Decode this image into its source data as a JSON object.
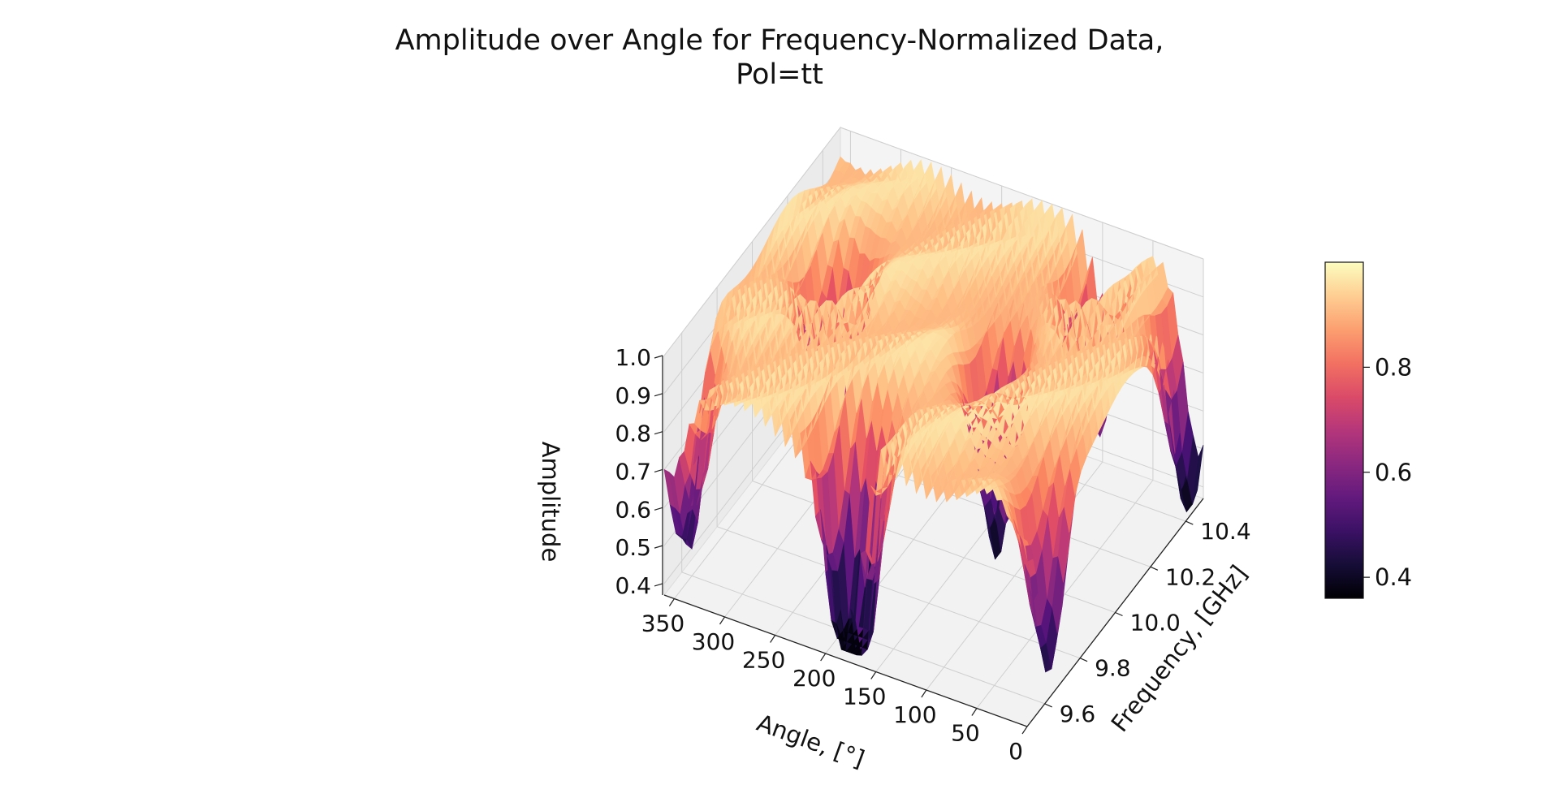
{
  "figure": {
    "title_line1": "Amplitude over Angle for Frequency-Normalized Data,",
    "title_line2": "Pol=tt"
  },
  "chart_data": {
    "type": "surface",
    "colormap": "magma",
    "title": "Amplitude over Angle for Frequency-Normalized Data, Pol=tt",
    "xlabel": "Angle, [°]",
    "ylabel": "Frequency, [GHz]",
    "zlabel": "Amplitude",
    "xlim": [
      0,
      360
    ],
    "ylim": [
      9.5,
      10.5
    ],
    "zlim": [
      0.37,
      1.0
    ],
    "xticks": [
      "350",
      "300",
      "250",
      "200",
      "150",
      "100",
      "50",
      "0"
    ],
    "yticks": [
      "9.6",
      "9.8",
      "10.0",
      "10.2",
      "10.4"
    ],
    "zticks": [
      "1.0",
      "0.9",
      "0.8",
      "0.7",
      "0.6",
      "0.5",
      "0.4"
    ],
    "colorbar": {
      "ticks": [
        "0.8",
        "0.6",
        "0.4"
      ],
      "range": [
        0.36,
        1.0
      ]
    },
    "grid": true,
    "surface_minima": [
      {
        "angle": 355,
        "frequency": 9.6,
        "amplitude": 0.45
      },
      {
        "angle": 295,
        "frequency": 10.1,
        "amplitude": 0.37
      },
      {
        "angle": 195,
        "frequency": 9.6,
        "amplitude": 0.45
      },
      {
        "angle": 175,
        "frequency": 9.55,
        "amplitude": 0.45
      },
      {
        "angle": 125,
        "frequency": 10.05,
        "amplitude": 0.37
      },
      {
        "angle": 5,
        "frequency": 9.65,
        "amplitude": 0.42
      },
      {
        "angle": 5,
        "frequency": 10.45,
        "amplitude": 0.37
      },
      {
        "angle": 90,
        "frequency": 10.4,
        "amplitude": 0.55
      }
    ]
  }
}
